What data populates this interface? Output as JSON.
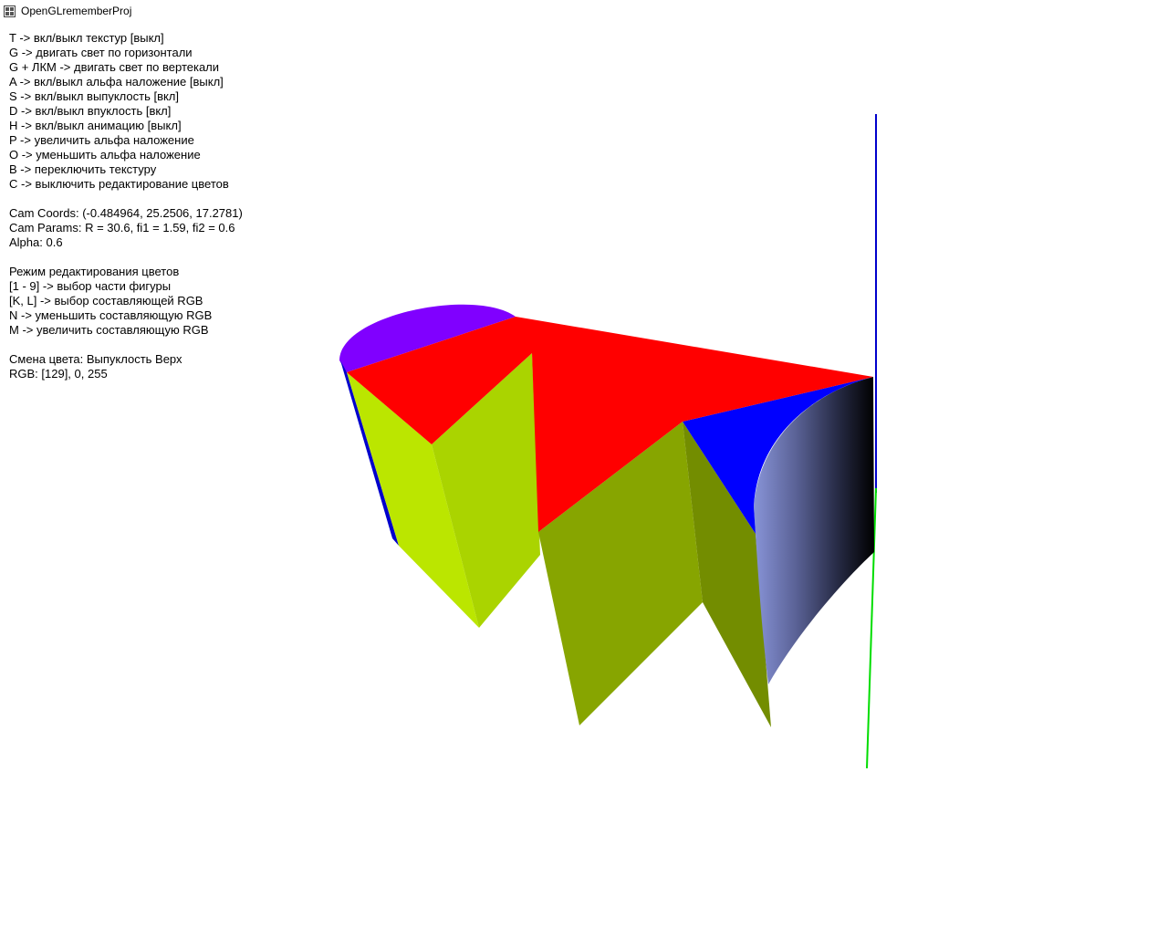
{
  "window": {
    "title": "OpenGLrememberProj",
    "icon": "window-app-icon"
  },
  "hud": {
    "lines": [
      "T -> вкл/выкл текстур [выкл]",
      "G -> двигать свет по горизонтали",
      "G + ЛКМ -> двигать свет по вертекали",
      "A -> вкл/выкл альфа наложение [выкл]",
      "S -> вкл/выкл выпуклость [вкл]",
      "D -> вкл/выкл впуклость [вкл]",
      "H -> вкл/выкл анимацию [выкл]",
      "P -> увеличить альфа наложение",
      "O -> уменьшить альфа наложение",
      "B -> переключить текстуру",
      "C -> выключить редактирование цветов",
      "",
      "Cam Coords: (-0.484964, 25.2506, 17.2781)",
      "Cam Params: R = 30.6, fi1 = 1.59, fi2 = 0.6",
      "Alpha: 0.6",
      "",
      "Режим редактирования цветов",
      "[1 - 9] -> выбор части фигуры",
      "[K, L] -> выбор составляющей RGB",
      "N -> уменьшить составляющую RGB",
      "M -> увеличить составляющую RGB",
      "",
      "Смена цвета: Выпуклость Верх",
      "RGB: [129], 0, 255"
    ]
  },
  "scene": {
    "colors": {
      "top_face": "#ff0000",
      "convex_top": "#8000ff",
      "concave_top": "#0000ff",
      "axis_z": "#0000cc",
      "axis_y": "#00dd00",
      "wall_light": "#bbe600",
      "wall_mid": "#aad400",
      "wall_dark": "#87a500",
      "wall_darker": "#738d00",
      "concave_wall_light": "#8894d8",
      "concave_wall_dark": "#000000"
    }
  }
}
